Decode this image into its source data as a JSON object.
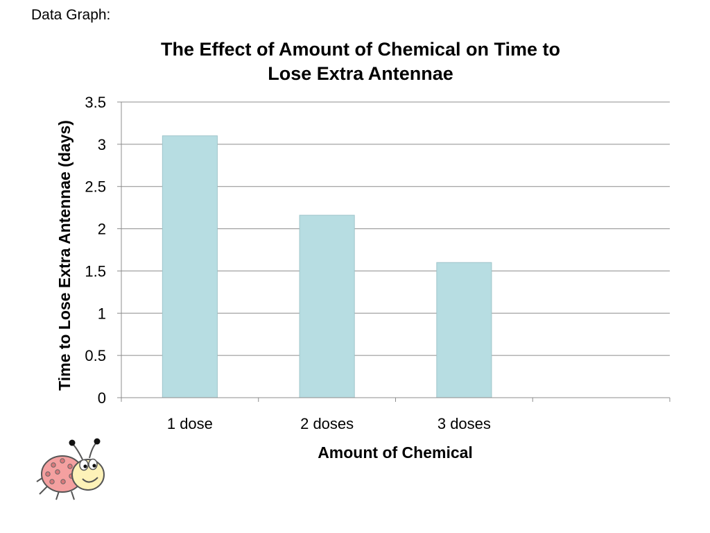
{
  "page": {
    "label": "Data Graph:"
  },
  "chart_data": {
    "type": "bar",
    "title_lines": [
      "The Effect of Amount of Chemical on Time to",
      "Lose Extra Antennae"
    ],
    "xlabel": "Amount of Chemical",
    "ylabel": "Time to Lose Extra Antennae (days)",
    "categories": [
      "1 dose",
      "2 doses",
      "3 doses",
      ""
    ],
    "values": [
      3.1,
      2.16,
      1.6,
      null
    ],
    "ylim": [
      0,
      3.5
    ],
    "yticks": [
      0,
      0.5,
      1,
      1.5,
      2,
      2.5,
      3,
      3.5
    ],
    "grid": true,
    "legend": "none",
    "colors": {
      "bar": "#b7dde2",
      "bar_stroke": "#9fc5cb",
      "grid": "#8c8c8c",
      "axis": "#8c8c8c"
    }
  },
  "mascot": {
    "icon": "ladybug-icon",
    "body_color": "#f4a0a0",
    "face_color": "#fdf2b8"
  }
}
